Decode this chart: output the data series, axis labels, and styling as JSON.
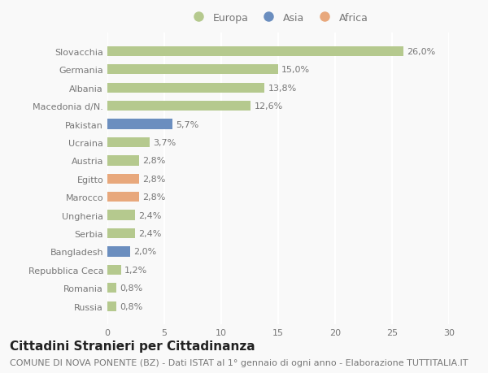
{
  "categories": [
    "Russia",
    "Romania",
    "Repubblica Ceca",
    "Bangladesh",
    "Serbia",
    "Ungheria",
    "Marocco",
    "Egitto",
    "Austria",
    "Ucraina",
    "Pakistan",
    "Macedonia d/N.",
    "Albania",
    "Germania",
    "Slovacchia"
  ],
  "values": [
    0.8,
    0.8,
    1.2,
    2.0,
    2.4,
    2.4,
    2.8,
    2.8,
    2.8,
    3.7,
    5.7,
    12.6,
    13.8,
    15.0,
    26.0
  ],
  "labels": [
    "0,8%",
    "0,8%",
    "1,2%",
    "2,0%",
    "2,4%",
    "2,4%",
    "2,8%",
    "2,8%",
    "2,8%",
    "3,7%",
    "5,7%",
    "12,6%",
    "13,8%",
    "15,0%",
    "26,0%"
  ],
  "colors": [
    "#b5c98e",
    "#b5c98e",
    "#b5c98e",
    "#6b8ebf",
    "#b5c98e",
    "#b5c98e",
    "#e8a87c",
    "#e8a87c",
    "#b5c98e",
    "#b5c98e",
    "#6b8ebf",
    "#b5c98e",
    "#b5c98e",
    "#b5c98e",
    "#b5c98e"
  ],
  "legend_labels": [
    "Europa",
    "Asia",
    "Africa"
  ],
  "legend_colors": [
    "#b5c98e",
    "#6b8ebf",
    "#e8a87c"
  ],
  "title": "Cittadini Stranieri per Cittadinanza",
  "subtitle": "COMUNE DI NOVA PONENTE (BZ) - Dati ISTAT al 1° gennaio di ogni anno - Elaborazione TUTTITALIA.IT",
  "xlim": [
    0,
    30
  ],
  "xticks": [
    0,
    5,
    10,
    15,
    20,
    25,
    30
  ],
  "background_color": "#f9f9f9",
  "grid_color": "#ffffff",
  "bar_height": 0.55,
  "title_fontsize": 11,
  "subtitle_fontsize": 8,
  "label_fontsize": 8,
  "tick_fontsize": 8,
  "legend_fontsize": 9
}
